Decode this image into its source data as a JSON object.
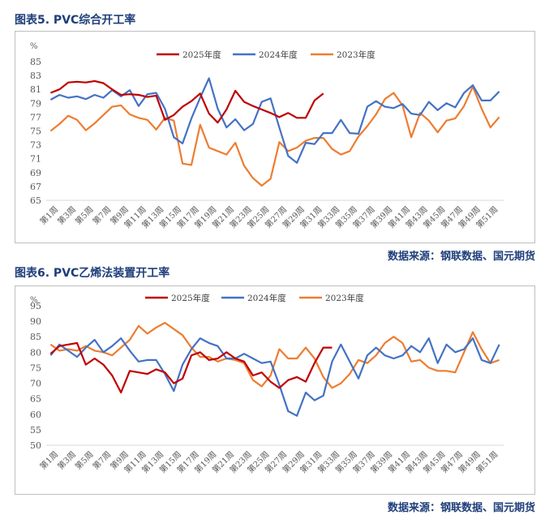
{
  "figures": [
    {
      "caption": "图表5.  PVC综合开工率",
      "source": "数据来源：钢联数据、国元期货"
    },
    {
      "caption": "图表6.  PVC乙烯法装置开工率",
      "source": "数据来源：钢联数据、国元期货"
    }
  ],
  "chart_data": [
    {
      "type": "line",
      "unit": "%",
      "ylim": [
        65,
        85
      ],
      "yticks": [
        65,
        67,
        69,
        71,
        73,
        75,
        77,
        79,
        81,
        83,
        85
      ],
      "x_tick_labels": [
        "第1周",
        "第3周",
        "第5周",
        "第7周",
        "第9周",
        "第11周",
        "第13周",
        "第15周",
        "第17周",
        "第19周",
        "第21周",
        "第23周",
        "第25周",
        "第27周",
        "第29周",
        "第31周",
        "第33周",
        "第35周",
        "第37周",
        "第39周",
        "第41周",
        "第43周",
        "第45周",
        "第47周",
        "第49周",
        "第51周"
      ],
      "legend_position": "top",
      "series": [
        {
          "name": "2025年度",
          "color": "#c00000",
          "values": [
            80.5,
            81,
            82,
            82.1,
            82,
            82.2,
            81.9,
            81,
            80.2,
            80.3,
            80.2,
            79.9,
            80.1,
            76.6,
            77.3,
            78.5,
            79.3,
            80.4,
            77.5,
            76.2,
            78.1,
            80.8,
            79.2,
            78.6,
            78.1,
            77.6,
            77,
            77.6,
            76.9,
            76.9,
            79.4,
            80.4
          ]
        },
        {
          "name": "2024年度",
          "color": "#4472c4",
          "values": [
            79.5,
            80.2,
            79.8,
            80,
            79.6,
            80.2,
            79.8,
            80.9,
            80,
            80.9,
            78.6,
            80.3,
            80.5,
            78.2,
            74.1,
            73.2,
            76.8,
            79.8,
            82.6,
            78.2,
            75.5,
            76.7,
            75.1,
            76,
            79.2,
            79.7,
            75.5,
            71.4,
            70.4,
            73.3,
            73.1,
            74.7,
            74.7,
            76.6,
            74.7,
            74.6,
            78.5,
            79.3,
            78.5,
            78.3,
            78.9,
            77.5,
            77.3,
            79.2,
            78,
            79,
            78.4,
            80.5,
            81.6,
            79.4,
            79.4,
            80.7
          ]
        },
        {
          "name": "2023年度",
          "color": "#ed7d31",
          "values": [
            75,
            76,
            77.2,
            76.6,
            75.1,
            76.1,
            77.3,
            78.5,
            78.7,
            77.4,
            76.9,
            76.6,
            75.2,
            76.9,
            76.5,
            70.3,
            70.1,
            75.9,
            72.6,
            72.1,
            71.6,
            73.3,
            70,
            68.2,
            67.1,
            68.1,
            73.4,
            72.1,
            72.6,
            73.6,
            74,
            74,
            72.4,
            71.6,
            72.1,
            74.2,
            75.7,
            77.4,
            79.6,
            80.5,
            78.7,
            74.1,
            77.6,
            76.5,
            74.8,
            76.5,
            76.8,
            78.6,
            81.4,
            78.2,
            75.5,
            77
          ]
        }
      ]
    },
    {
      "type": "line",
      "unit": "%",
      "ylim": [
        50,
        95
      ],
      "yticks": [
        50,
        55,
        60,
        65,
        70,
        75,
        80,
        85,
        90,
        95
      ],
      "x_tick_labels": [
        "第1周",
        "第3周",
        "第5周",
        "第7周",
        "第9周",
        "第11周",
        "第13周",
        "第15周",
        "第17周",
        "第19周",
        "第21周",
        "第23周",
        "第25周",
        "第27周",
        "第29周",
        "第31周",
        "第33周",
        "第35周",
        "第37周",
        "第39周",
        "第41周",
        "第43周",
        "第45周",
        "第47周",
        "第49周",
        "第51周"
      ],
      "legend_position": "top",
      "series": [
        {
          "name": "2025年度",
          "color": "#c00000",
          "values": [
            79.5,
            82,
            82.5,
            83,
            76,
            78,
            76,
            72.5,
            67,
            74,
            73.5,
            73,
            74.5,
            73.5,
            70,
            71.5,
            79,
            80,
            77.5,
            78,
            80,
            78,
            77,
            72.5,
            73.5,
            70.5,
            68.5,
            71,
            72,
            70.5,
            76.5,
            81.5,
            81.5
          ]
        },
        {
          "name": "2024年度",
          "color": "#4472c4",
          "values": [
            79,
            82.5,
            80.5,
            78.5,
            81.5,
            84,
            80,
            82,
            84.5,
            80.5,
            77,
            77.5,
            77.5,
            73,
            67.5,
            76,
            81,
            84.5,
            83,
            82,
            78,
            78,
            79.5,
            78,
            76.5,
            77,
            69.5,
            61,
            59.5,
            67,
            64.5,
            66,
            77,
            82.5,
            77,
            71.5,
            79,
            81.5,
            79,
            78,
            79,
            82,
            80,
            84.5,
            76.5,
            82.5,
            80,
            81,
            84.5,
            77.5,
            76.5,
            82.5
          ]
        },
        {
          "name": "2023年度",
          "color": "#ed7d31",
          "values": [
            82.5,
            80.5,
            81,
            80.5,
            82,
            80.5,
            80,
            79,
            81.5,
            84,
            88.5,
            86,
            88,
            89.5,
            87.5,
            85.5,
            81.5,
            78.5,
            78.5,
            77,
            78,
            77.5,
            76.5,
            71,
            69,
            72.5,
            81,
            78,
            78,
            81.5,
            78,
            72,
            68.5,
            70,
            73,
            77.5,
            76.5,
            79,
            83,
            85,
            83,
            77,
            77.5,
            75,
            74,
            74,
            73.5,
            80,
            86.5,
            81,
            76.5,
            77.5
          ]
        }
      ]
    }
  ]
}
